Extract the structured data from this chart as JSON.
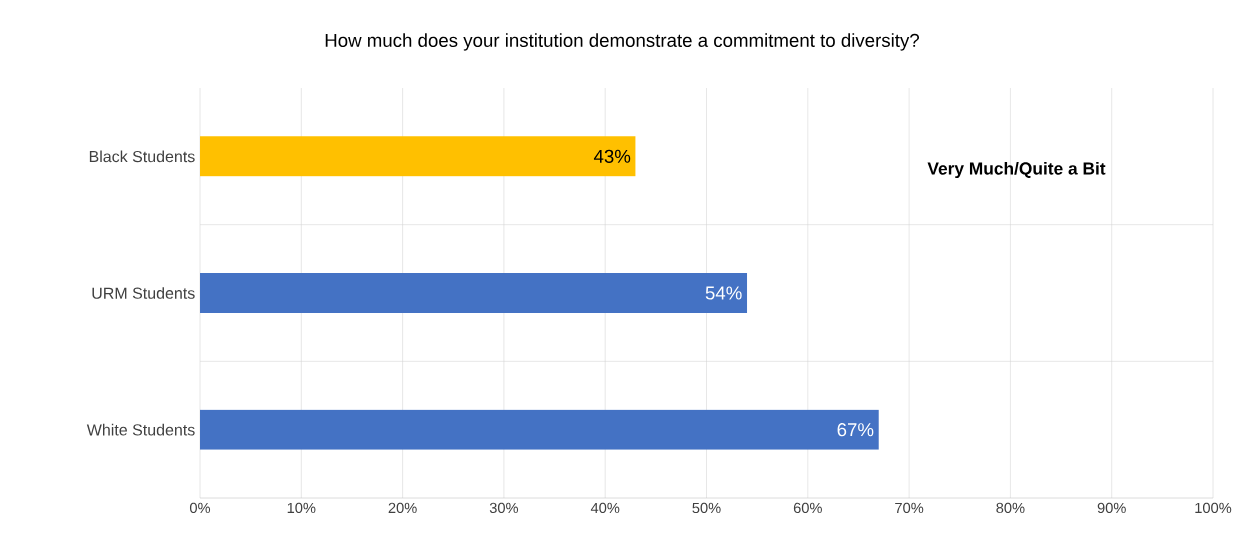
{
  "chart_data": {
    "type": "bar",
    "orientation": "horizontal",
    "title": "How much does your institution demonstrate a commitment to diversity?",
    "categories": [
      "Black Students",
      "URM Students",
      "White Students"
    ],
    "values": [
      43,
      54,
      67
    ],
    "colors": [
      "#ffc000",
      "#4472c4",
      "#4472c4"
    ],
    "value_labels": [
      "43%",
      "54%",
      "67%"
    ],
    "xlim": [
      0,
      100
    ],
    "xticks": [
      {
        "value": 0,
        "label": "0%"
      },
      {
        "value": 10,
        "label": "10%"
      },
      {
        "value": 20,
        "label": "20%"
      },
      {
        "value": 30,
        "label": "30%"
      },
      {
        "value": 40,
        "label": "40%"
      },
      {
        "value": 50,
        "label": "50%"
      },
      {
        "value": 60,
        "label": "60%"
      },
      {
        "value": 70,
        "label": "70%"
      },
      {
        "value": 80,
        "label": "80%"
      },
      {
        "value": 90,
        "label": "90%"
      },
      {
        "value": 100,
        "label": "100%"
      }
    ],
    "grid": true,
    "annotations": [
      "Very Much/Quite a Bit"
    ]
  }
}
